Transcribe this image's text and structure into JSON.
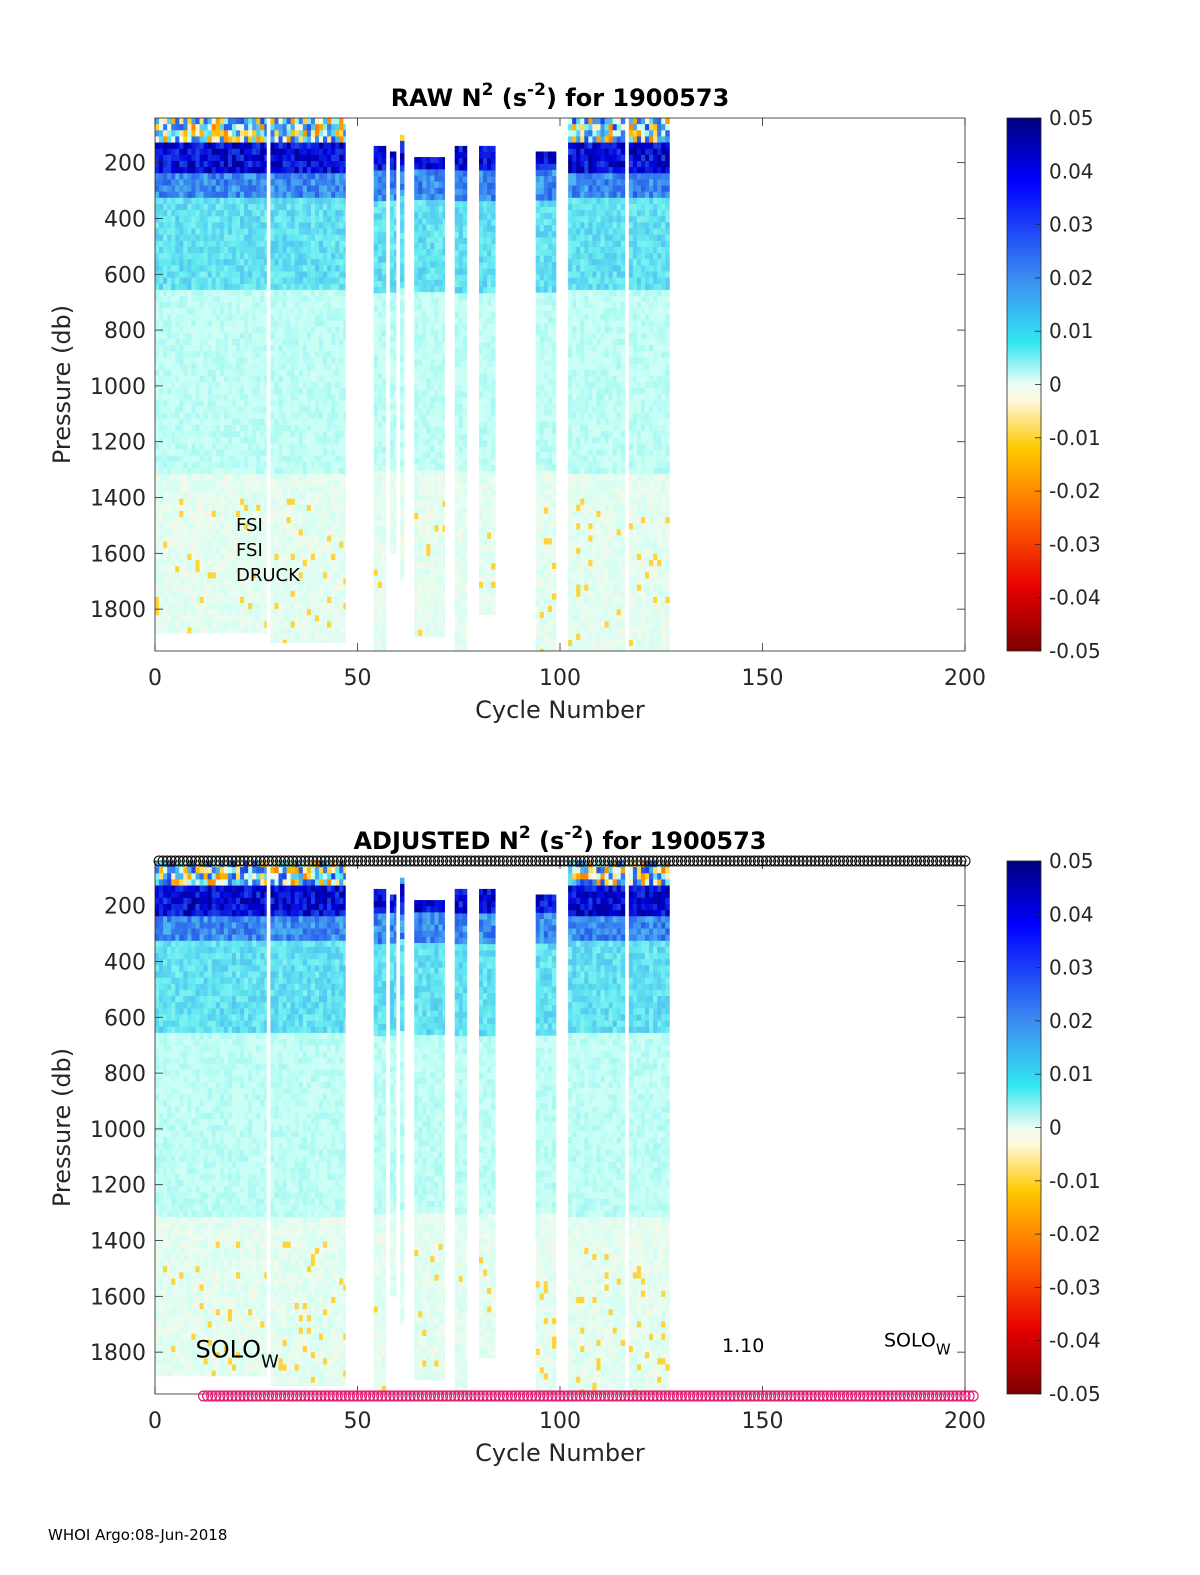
{
  "chart_data": [
    {
      "type": "heatmap",
      "title_parts": [
        "RAW N",
        "2",
        " (s",
        "-2",
        ") for 1900573"
      ],
      "xlabel": "Cycle Number",
      "ylabel": "Pressure (db)",
      "xlim": [
        0,
        200
      ],
      "ylim": [
        1950,
        40
      ],
      "xticks": [
        0,
        50,
        100,
        150,
        200
      ],
      "yticks": [
        200,
        400,
        600,
        800,
        1000,
        1200,
        1400,
        1600,
        1800
      ],
      "grid": false,
      "colorbar": {
        "range": [
          -0.05,
          0.05
        ],
        "ticks": [
          0.05,
          0.04,
          0.03,
          0.02,
          0.01,
          0,
          -0.01,
          -0.02,
          -0.03,
          -0.04,
          -0.05
        ],
        "tick_labels": [
          "0.05",
          "0.04",
          "0.03",
          "0.02",
          "0.01",
          "0",
          "-0.01",
          "-0.02",
          "-0.03",
          "-0.04",
          "-0.05"
        ],
        "colormap": "jet"
      },
      "annotations": [
        {
          "text": "FSI",
          "x": 20,
          "y": 1520
        },
        {
          "text": "FSI",
          "x": 20,
          "y": 1610
        },
        {
          "text": "DRUCK",
          "x": 20,
          "y": 1700
        }
      ],
      "data_columns": [
        {
          "from": 0,
          "to": 27.5,
          "p_top": 40,
          "p_bottom": 1885
        },
        {
          "from": 28.5,
          "to": 47,
          "p_top": 40,
          "p_bottom": 1920
        },
        {
          "from": 54,
          "to": 57,
          "p_top": 140,
          "p_bottom": 1950
        },
        {
          "from": 58,
          "to": 59.5,
          "p_top": 160,
          "p_bottom": 1600
        },
        {
          "from": 60.5,
          "to": 61.5,
          "p_top": 100,
          "p_bottom": 1700
        },
        {
          "from": 64,
          "to": 71.5,
          "p_top": 180,
          "p_bottom": 1900
        },
        {
          "from": 74,
          "to": 77,
          "p_top": 140,
          "p_bottom": 1950
        },
        {
          "from": 80,
          "to": 84,
          "p_top": 140,
          "p_bottom": 1820
        },
        {
          "from": 94,
          "to": 99,
          "p_top": 160,
          "p_bottom": 1950
        },
        {
          "from": 102,
          "to": 116,
          "p_top": 40,
          "p_bottom": 1950
        },
        {
          "from": 117,
          "to": 127,
          "p_top": 40,
          "p_bottom": 1950
        }
      ]
    },
    {
      "type": "heatmap",
      "title_parts": [
        "ADJUSTED N",
        "2",
        " (s",
        "-2",
        ") for 1900573"
      ],
      "xlabel": "Cycle Number",
      "ylabel": "Pressure (db)",
      "xlim": [
        0,
        200
      ],
      "ylim": [
        1950,
        40
      ],
      "xticks": [
        0,
        50,
        100,
        150,
        200
      ],
      "yticks": [
        200,
        400,
        600,
        800,
        1000,
        1200,
        1400,
        1600,
        1800
      ],
      "grid": false,
      "colorbar": {
        "range": [
          -0.05,
          0.05
        ],
        "ticks": [
          0.05,
          0.04,
          0.03,
          0.02,
          0.01,
          0,
          -0.01,
          -0.02,
          -0.03,
          -0.04,
          -0.05
        ],
        "tick_labels": [
          "0.05",
          "0.04",
          "0.03",
          "0.02",
          "0.01",
          "0",
          "-0.01",
          "-0.02",
          "-0.03",
          "-0.04",
          "-0.05"
        ],
        "colormap": "jet"
      },
      "annotations": [
        {
          "main": "SOLO",
          "sub": "W",
          "x": 10,
          "y": 1820,
          "size": "large"
        },
        {
          "main": "1.10",
          "sub": "",
          "x": 140,
          "y": 1800,
          "size": "small"
        },
        {
          "main": "SOLO",
          "sub": "W",
          "x": 180,
          "y": 1780,
          "size": "small"
        }
      ],
      "top_markers": {
        "from": 1,
        "to": 200,
        "color": "#000000"
      },
      "bottom_markers": {
        "from": 12,
        "to": 202,
        "color": "#e6136e"
      },
      "data_columns": [
        {
          "from": 0,
          "to": 27.5,
          "p_top": 40,
          "p_bottom": 1885
        },
        {
          "from": 28.5,
          "to": 47,
          "p_top": 40,
          "p_bottom": 1920
        },
        {
          "from": 54,
          "to": 57,
          "p_top": 140,
          "p_bottom": 1950
        },
        {
          "from": 58,
          "to": 59.5,
          "p_top": 160,
          "p_bottom": 1600
        },
        {
          "from": 60.5,
          "to": 61.5,
          "p_top": 100,
          "p_bottom": 1700
        },
        {
          "from": 64,
          "to": 71.5,
          "p_top": 180,
          "p_bottom": 1900
        },
        {
          "from": 74,
          "to": 77,
          "p_top": 140,
          "p_bottom": 1950
        },
        {
          "from": 80,
          "to": 84,
          "p_top": 140,
          "p_bottom": 1820
        },
        {
          "from": 94,
          "to": 99,
          "p_top": 160,
          "p_bottom": 1950
        },
        {
          "from": 102,
          "to": 116,
          "p_top": 40,
          "p_bottom": 1950
        },
        {
          "from": 117,
          "to": 127,
          "p_top": 40,
          "p_bottom": 1950
        }
      ]
    }
  ],
  "footer": "WHOI Argo:08-Jun-2018"
}
